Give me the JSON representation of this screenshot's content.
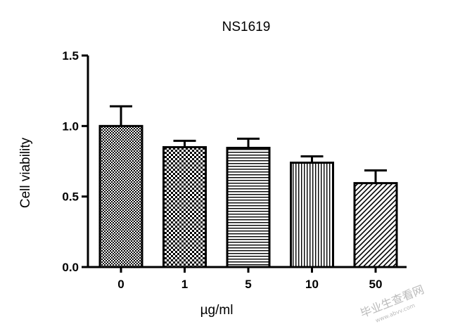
{
  "chart_data": {
    "type": "bar",
    "title": "NS1619",
    "xlabel": "µg/ml",
    "ylabel": "Cell viability",
    "categories": [
      "0",
      "1",
      "5",
      "10",
      "50"
    ],
    "values": [
      1.0,
      0.85,
      0.845,
      0.74,
      0.595
    ],
    "errors": [
      0.14,
      0.045,
      0.065,
      0.045,
      0.09
    ],
    "yticks": [
      "0.0",
      "0.5",
      "1.0",
      "1.5"
    ],
    "ylim": [
      0,
      1.5
    ],
    "grid": false,
    "patterns": [
      "fine-check",
      "checker",
      "horizontal-lines",
      "vertical-lines",
      "diagonal-lines"
    ]
  },
  "watermark": {
    "text": "毕业生查看网",
    "url": "www.abvv.com"
  }
}
